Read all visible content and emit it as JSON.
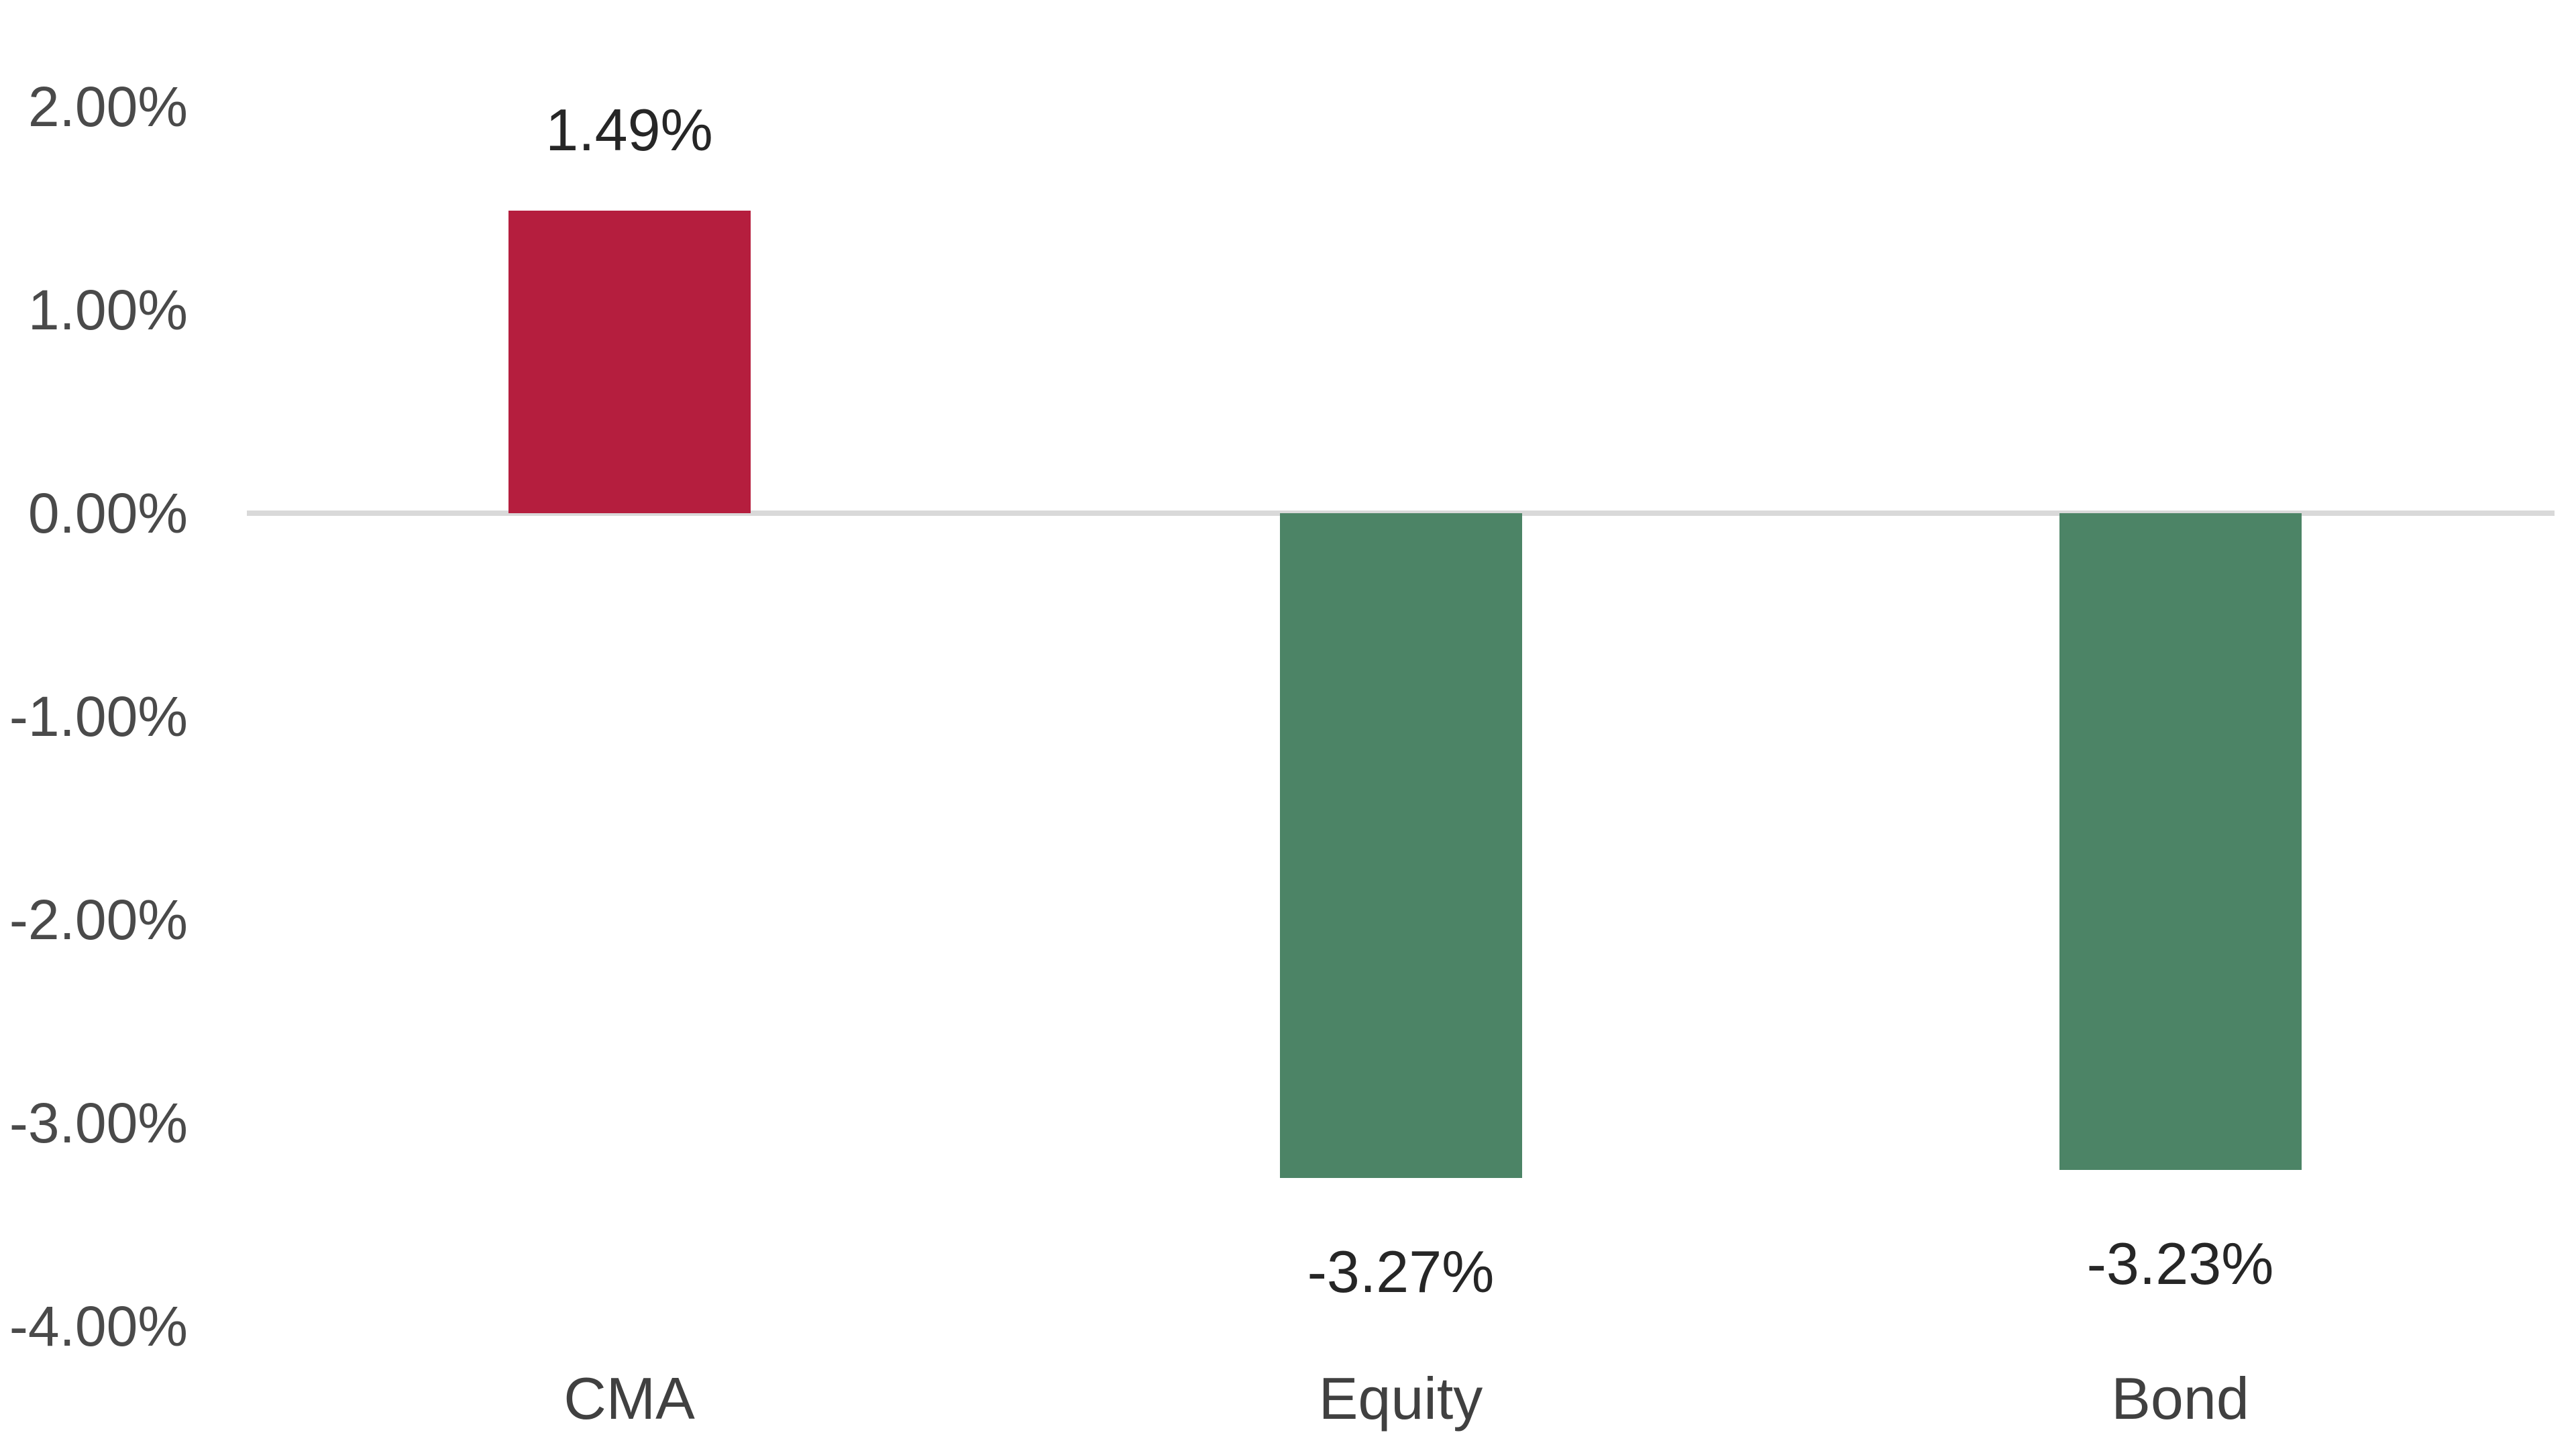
{
  "chart_data": {
    "type": "bar",
    "title": "",
    "xlabel": "",
    "ylabel": "",
    "categories": [
      "CMA",
      "Equity",
      "Bond"
    ],
    "values": [
      1.49,
      -3.27,
      -3.23
    ],
    "data_labels": [
      "1.49%",
      "-3.27%",
      "-3.23%"
    ],
    "bar_colors": [
      "#b51e3e",
      "#4c8466",
      "#4c8466"
    ],
    "ylim": [
      -4.0,
      2.0
    ],
    "y_ticks": [
      {
        "value": 2.0,
        "label": "2.00%"
      },
      {
        "value": 1.0,
        "label": "1.00%"
      },
      {
        "value": 0.0,
        "label": "0.00%"
      },
      {
        "value": -1.0,
        "label": "-1.00%"
      },
      {
        "value": -2.0,
        "label": "-2.00%"
      },
      {
        "value": -3.0,
        "label": "-3.00%"
      },
      {
        "value": -4.0,
        "label": "-4.00%"
      }
    ],
    "grid": "off",
    "legend": "none",
    "baseline_axis": "horizontal line at 0.00%",
    "axis_line_color": "#d9d9d9",
    "tick_label_color": "#4a4a4a",
    "data_label_color": "#262626",
    "category_label_color": "#404040",
    "background_color": "#ffffff"
  }
}
